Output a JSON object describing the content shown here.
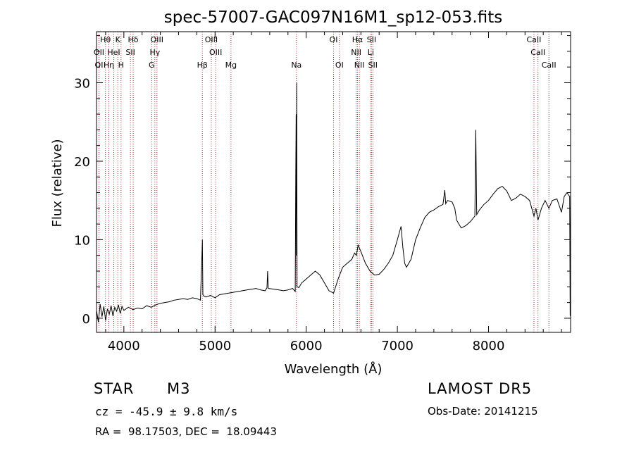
{
  "chart_data": {
    "type": "line",
    "title": "spec-57007-GAC097N16M1_sp12-053.fits",
    "xlabel": "Wavelength (Å)",
    "ylabel": "Flux (relative)",
    "xlim": [
      3700,
      8900
    ],
    "ylim": [
      -1.8,
      36.5
    ],
    "xticks": [
      4000,
      5000,
      6000,
      7000,
      8000
    ],
    "yticks": [
      0,
      10,
      20,
      30
    ],
    "grid": false,
    "legend": "none",
    "series": [
      {
        "points": [
          [
            3700,
            1.0
          ],
          [
            3720,
            -0.5
          ],
          [
            3740,
            1.8
          ],
          [
            3760,
            0.2
          ],
          [
            3780,
            1.5
          ],
          [
            3800,
            -0.3
          ],
          [
            3820,
            1.2
          ],
          [
            3840,
            0.5
          ],
          [
            3860,
            1.6
          ],
          [
            3880,
            0.3
          ],
          [
            3900,
            1.4
          ],
          [
            3920,
            0.9
          ],
          [
            3940,
            1.7
          ],
          [
            3960,
            0.6
          ],
          [
            3980,
            1.5
          ],
          [
            4000,
            1.0
          ],
          [
            4050,
            1.4
          ],
          [
            4100,
            1.1
          ],
          [
            4150,
            1.3
          ],
          [
            4200,
            1.2
          ],
          [
            4250,
            1.6
          ],
          [
            4300,
            1.4
          ],
          [
            4350,
            1.7
          ],
          [
            4400,
            1.9
          ],
          [
            4450,
            2.0
          ],
          [
            4500,
            2.1
          ],
          [
            4550,
            2.3
          ],
          [
            4600,
            2.4
          ],
          [
            4650,
            2.5
          ],
          [
            4700,
            2.4
          ],
          [
            4750,
            2.6
          ],
          [
            4800,
            2.5
          ],
          [
            4840,
            2.3
          ],
          [
            4855,
            7.5
          ],
          [
            4861,
            10.0
          ],
          [
            4867,
            3.0
          ],
          [
            4880,
            2.8
          ],
          [
            4900,
            2.7
          ],
          [
            4950,
            2.9
          ],
          [
            5000,
            2.6
          ],
          [
            5050,
            3.0
          ],
          [
            5100,
            3.1
          ],
          [
            5150,
            3.2
          ],
          [
            5200,
            3.3
          ],
          [
            5250,
            3.4
          ],
          [
            5300,
            3.5
          ],
          [
            5350,
            3.6
          ],
          [
            5400,
            3.7
          ],
          [
            5450,
            3.8
          ],
          [
            5500,
            3.6
          ],
          [
            5550,
            3.5
          ],
          [
            5570,
            3.9
          ],
          [
            5577,
            6.0
          ],
          [
            5584,
            3.8
          ],
          [
            5650,
            3.7
          ],
          [
            5700,
            3.6
          ],
          [
            5750,
            3.5
          ],
          [
            5800,
            3.6
          ],
          [
            5850,
            3.8
          ],
          [
            5880,
            3.4
          ],
          [
            5886,
            19.0
          ],
          [
            5890,
            26.0
          ],
          [
            5893,
            8.0
          ],
          [
            5896,
            30.0
          ],
          [
            5900,
            4.0
          ],
          [
            5920,
            3.9
          ],
          [
            5950,
            4.5
          ],
          [
            6000,
            5.0
          ],
          [
            6050,
            5.5
          ],
          [
            6100,
            6.0
          ],
          [
            6150,
            5.5
          ],
          [
            6200,
            4.5
          ],
          [
            6250,
            3.5
          ],
          [
            6300,
            3.2
          ],
          [
            6350,
            5.0
          ],
          [
            6400,
            6.5
          ],
          [
            6450,
            7.0
          ],
          [
            6500,
            7.5
          ],
          [
            6530,
            8.3
          ],
          [
            6550,
            8.0
          ],
          [
            6570,
            9.3
          ],
          [
            6600,
            8.5
          ],
          [
            6650,
            7.0
          ],
          [
            6700,
            6.0
          ],
          [
            6750,
            5.5
          ],
          [
            6800,
            5.6
          ],
          [
            6850,
            6.2
          ],
          [
            6900,
            7.0
          ],
          [
            6950,
            8.0
          ],
          [
            7000,
            10.0
          ],
          [
            7040,
            11.7
          ],
          [
            7060,
            9.0
          ],
          [
            7080,
            7.0
          ],
          [
            7100,
            6.5
          ],
          [
            7150,
            7.5
          ],
          [
            7200,
            10.0
          ],
          [
            7250,
            11.5
          ],
          [
            7300,
            12.8
          ],
          [
            7350,
            13.5
          ],
          [
            7400,
            13.8
          ],
          [
            7450,
            14.2
          ],
          [
            7500,
            14.5
          ],
          [
            7520,
            16.3
          ],
          [
            7530,
            14.6
          ],
          [
            7550,
            15.0
          ],
          [
            7600,
            14.8
          ],
          [
            7630,
            14.0
          ],
          [
            7650,
            12.5
          ],
          [
            7700,
            11.5
          ],
          [
            7750,
            11.8
          ],
          [
            7800,
            12.3
          ],
          [
            7850,
            13.0
          ],
          [
            7860,
            24.0
          ],
          [
            7870,
            13.2
          ],
          [
            7900,
            13.8
          ],
          [
            7950,
            14.5
          ],
          [
            8000,
            15.0
          ],
          [
            8050,
            15.8
          ],
          [
            8100,
            16.5
          ],
          [
            8150,
            16.8
          ],
          [
            8200,
            16.2
          ],
          [
            8250,
            15.0
          ],
          [
            8300,
            15.3
          ],
          [
            8350,
            15.8
          ],
          [
            8400,
            15.5
          ],
          [
            8450,
            15.0
          ],
          [
            8498,
            13.0
          ],
          [
            8520,
            14.0
          ],
          [
            8542,
            12.5
          ],
          [
            8580,
            14.0
          ],
          [
            8620,
            15.0
          ],
          [
            8662,
            14.0
          ],
          [
            8700,
            15.0
          ],
          [
            8750,
            15.2
          ],
          [
            8800,
            13.5
          ],
          [
            8830,
            15.5
          ],
          [
            8860,
            16.0
          ],
          [
            8890,
            15.5
          ],
          [
            8895,
            0.3
          ],
          [
            8900,
            15.0
          ]
        ]
      }
    ],
    "lines": [
      {
        "label": "Hθ",
        "x": 3798,
        "row": 0
      },
      {
        "label": "K",
        "x": 3934,
        "row": 0
      },
      {
        "label": "Hδ",
        "x": 4102,
        "row": 0
      },
      {
        "label": "OIII",
        "x": 4363,
        "row": 0
      },
      {
        "label": "OIII",
        "x": 4959,
        "row": 0
      },
      {
        "label": "OI",
        "x": 6300,
        "row": 0
      },
      {
        "label": "Hα",
        "x": 6563,
        "row": 0
      },
      {
        "label": "SII",
        "x": 6716,
        "row": 0
      },
      {
        "label": "CaII",
        "x": 8498,
        "row": 0
      },
      {
        "label": "OII",
        "x": 3727,
        "row": 1
      },
      {
        "label": "HeI",
        "x": 3889,
        "row": 1
      },
      {
        "label": "SII",
        "x": 4072,
        "row": 1
      },
      {
        "label": "Hγ",
        "x": 4340,
        "row": 1
      },
      {
        "label": "OIII",
        "x": 5007,
        "row": 1
      },
      {
        "label": "NII",
        "x": 6548,
        "row": 1
      },
      {
        "label": "Li",
        "x": 6708,
        "row": 1
      },
      {
        "label": "CaII",
        "x": 8542,
        "row": 1
      },
      {
        "label": "OI",
        "x": 3727,
        "row": 2
      },
      {
        "label": "Hη",
        "x": 3835,
        "row": 2
      },
      {
        "label": "H",
        "x": 3969,
        "row": 2
      },
      {
        "label": "G",
        "x": 4305,
        "row": 2
      },
      {
        "label": "Hβ",
        "x": 4861,
        "row": 2
      },
      {
        "label": "Mg",
        "x": 5175,
        "row": 2
      },
      {
        "label": "Na",
        "x": 5893,
        "row": 2
      },
      {
        "label": "OI",
        "x": 6364,
        "row": 2
      },
      {
        "label": "NII",
        "x": 6583,
        "row": 2
      },
      {
        "label": "SII",
        "x": 6731,
        "row": 2
      },
      {
        "label": "CaII",
        "x": 8662,
        "row": 2
      }
    ],
    "colors": {
      "spectrum": "#000000",
      "lines": "#b03030",
      "axes": "#000000"
    }
  },
  "info": {
    "object_type": "STAR",
    "subclass": "M3",
    "survey": "LAMOST DR5",
    "cz": "cz = -45.9 ± 9.8 km/s",
    "obs_date": "Obs-Date: 20141215",
    "coords": "RA =  98.17503, DEC =  18.09443"
  }
}
